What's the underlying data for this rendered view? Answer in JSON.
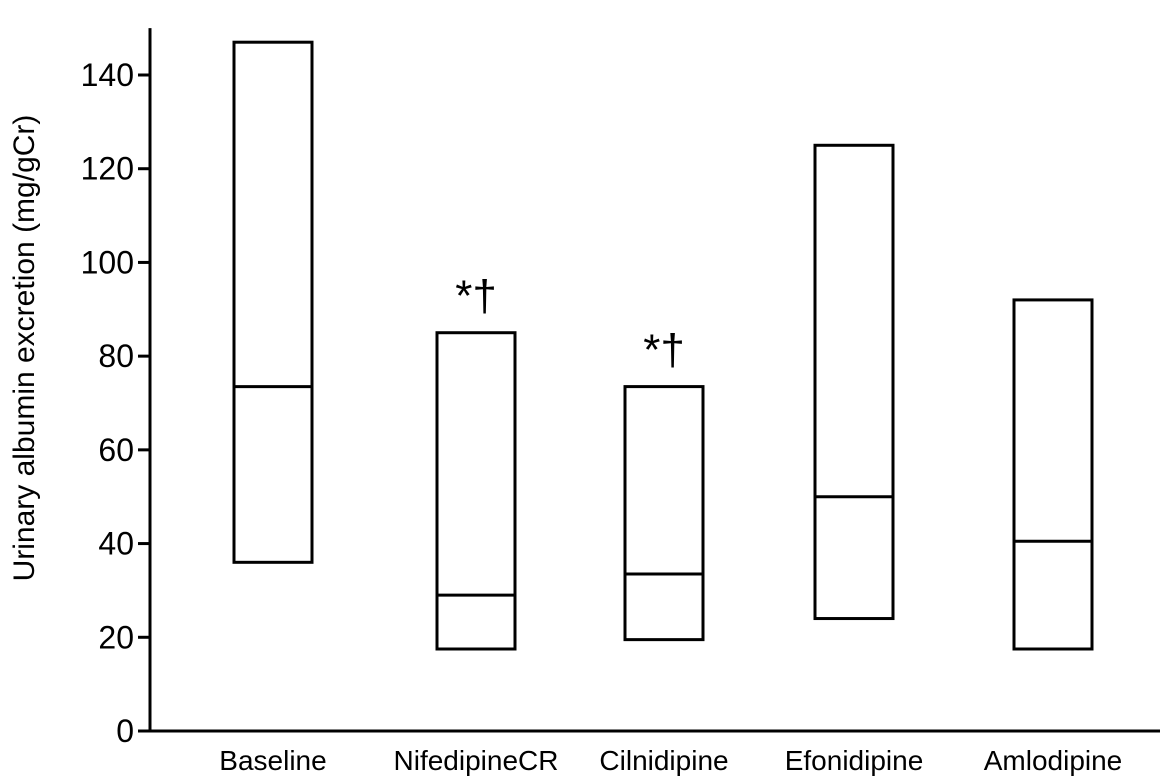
{
  "chart_data": {
    "type": "box",
    "ylabel": "Urinary albumin excretion (mg/gCr)",
    "xlabel": "",
    "ylim": [
      0,
      150
    ],
    "yticks": [
      0,
      20,
      40,
      60,
      80,
      100,
      120,
      140
    ],
    "grid": false,
    "categories": [
      "Baseline",
      "NifedipineCR",
      "Cilnidipine",
      "Efonidipine",
      "Amlodipine"
    ],
    "boxes": [
      {
        "low": 36,
        "median": 73.5,
        "high": 147,
        "annotation": ""
      },
      {
        "low": 17.5,
        "median": 29,
        "high": 85,
        "annotation": "*†"
      },
      {
        "low": 19.5,
        "median": 33.5,
        "high": 73.5,
        "annotation": "*†"
      },
      {
        "low": 24,
        "median": 50,
        "high": 125,
        "annotation": ""
      },
      {
        "low": 17.5,
        "median": 40.5,
        "high": 92,
        "annotation": ""
      }
    ]
  }
}
